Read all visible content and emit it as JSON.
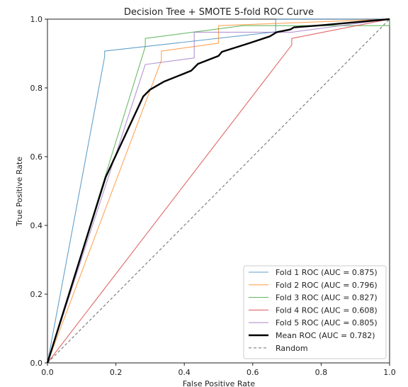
{
  "chart_data": {
    "type": "line",
    "title": "Decision Tree + SMOTE 5-fold ROC Curve",
    "xlabel": "False Positive Rate",
    "ylabel": "True Positive Rate",
    "xlim": [
      0.0,
      1.0
    ],
    "ylim": [
      0.0,
      1.0
    ],
    "xticks": [
      "0.0",
      "0.2",
      "0.4",
      "0.6",
      "0.8",
      "1.0"
    ],
    "yticks": [
      "0.0",
      "0.2",
      "0.4",
      "0.6",
      "0.8",
      "1.0"
    ],
    "grid": false,
    "legend_position": "bottom-right",
    "series": [
      {
        "name": "Fold 1 ROC (AUC = 0.875)",
        "color": "#1f77b4",
        "x": [
          0.0,
          0.167,
          0.167,
          0.667,
          0.667,
          1.0
        ],
        "y": [
          0.0,
          0.89,
          0.907,
          0.963,
          1.0,
          1.0
        ]
      },
      {
        "name": "Fold 2 ROC (AUC = 0.796)",
        "color": "#ff7f0e",
        "x": [
          0.0,
          0.333,
          0.333,
          0.5,
          0.5,
          1.0
        ],
        "y": [
          0.0,
          0.88,
          0.907,
          0.93,
          0.981,
          1.0
        ]
      },
      {
        "name": "Fold 3 ROC (AUC = 0.827)",
        "color": "#2ca02c",
        "x": [
          0.0,
          0.286,
          0.286,
          0.571,
          1.0,
          1.0
        ],
        "y": [
          0.0,
          0.92,
          0.944,
          0.981,
          0.981,
          1.0
        ]
      },
      {
        "name": "Fold 4 ROC (AUC = 0.608)",
        "color": "#d62728",
        "x": [
          0.0,
          0.714,
          0.714,
          1.0
        ],
        "y": [
          0.0,
          0.925,
          0.944,
          1.0
        ]
      },
      {
        "name": "Fold 5 ROC (AUC = 0.805)",
        "color": "#9467bd",
        "x": [
          0.0,
          0.286,
          0.429,
          0.429,
          0.714,
          1.0
        ],
        "y": [
          0.0,
          0.868,
          0.887,
          0.962,
          0.962,
          1.0
        ]
      },
      {
        "name": "Mean ROC (AUC = 0.782)",
        "color": "#000000",
        "x": [
          0.0,
          0.17,
          0.28,
          0.3,
          0.34,
          0.42,
          0.44,
          0.5,
          0.51,
          0.59,
          0.65,
          0.67,
          0.71,
          0.72,
          0.8,
          1.0
        ],
        "y": [
          0.0,
          0.54,
          0.775,
          0.795,
          0.818,
          0.85,
          0.87,
          0.893,
          0.905,
          0.93,
          0.95,
          0.962,
          0.97,
          0.976,
          0.982,
          1.0
        ]
      },
      {
        "name": "Random",
        "color": "#808080",
        "x": [
          0.0,
          1.0
        ],
        "y": [
          0.0,
          1.0
        ]
      }
    ]
  }
}
